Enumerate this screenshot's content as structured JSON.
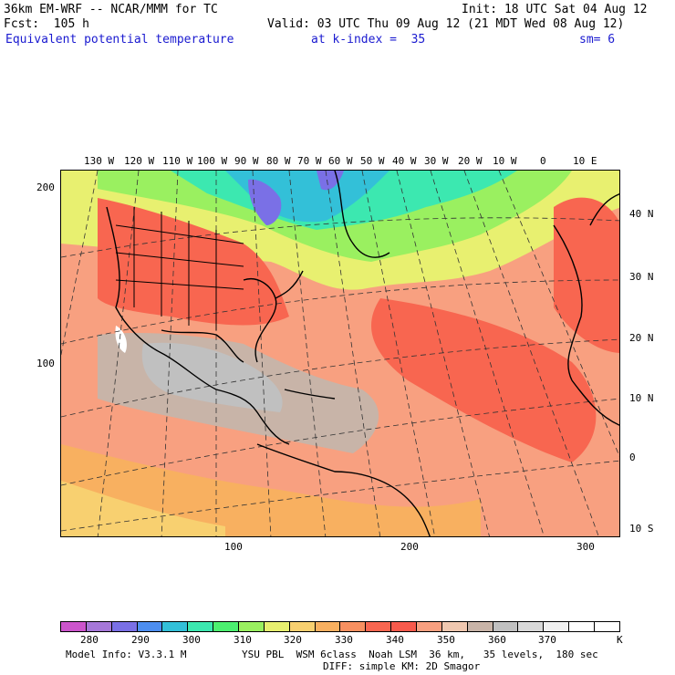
{
  "header": {
    "model_line": "36km EM-WRF -- NCAR/MMM for TC",
    "init_line": "Init: 18 UTC Sat 04 Aug 12",
    "fcst_line": "Fcst:  105 h",
    "valid_line": "Valid: 03 UTC Thu 09 Aug 12 (21 MDT Wed 08 Aug 12)",
    "field_title": "Equivalent potential temperature",
    "level": "at k-index =  35",
    "smoothing": "sm= 6"
  },
  "map": {
    "top_lon_labels": [
      "130 W",
      "120 W",
      "110 W",
      "100 W",
      "90 W",
      "80 W",
      "70 W",
      "60 W",
      "50 W",
      "40 W",
      "30 W",
      "20 W",
      "10 W",
      "0",
      "10 E"
    ],
    "right_lat_labels": [
      "40 N",
      "30 N",
      "20 N",
      "10 N",
      "0",
      "10 S"
    ],
    "left_grid_labels": [
      "200",
      "100"
    ],
    "bottom_grid_labels": [
      "100",
      "200",
      "300"
    ]
  },
  "colorbar": {
    "unit": "K",
    "tick_labels": [
      "280",
      "290",
      "300",
      "310",
      "320",
      "330",
      "340",
      "350",
      "360",
      "370"
    ],
    "colors": [
      "#cc55cc",
      "#a678d8",
      "#7a70e6",
      "#4d8ef0",
      "#33c0d8",
      "#3ce8b0",
      "#4cf070",
      "#9af060",
      "#e8f070",
      "#f8d070",
      "#f8b060",
      "#f89060",
      "#f86650",
      "#f85a4c",
      "#f8a080",
      "#f0c8b0",
      "#c8b4a8",
      "#c0c0c0",
      "#d8d8d8",
      "#f0f0f0",
      "#ffffff",
      "#ffffff"
    ]
  },
  "footer": {
    "model_info": "Model Info: V3.3.1 M",
    "physics": "YSU PBL  WSM 6class  Noah LSM  36 km,   35 levels,  180 sec",
    "diffusion": "DIFF: simple KM: 2D Smagor"
  }
}
